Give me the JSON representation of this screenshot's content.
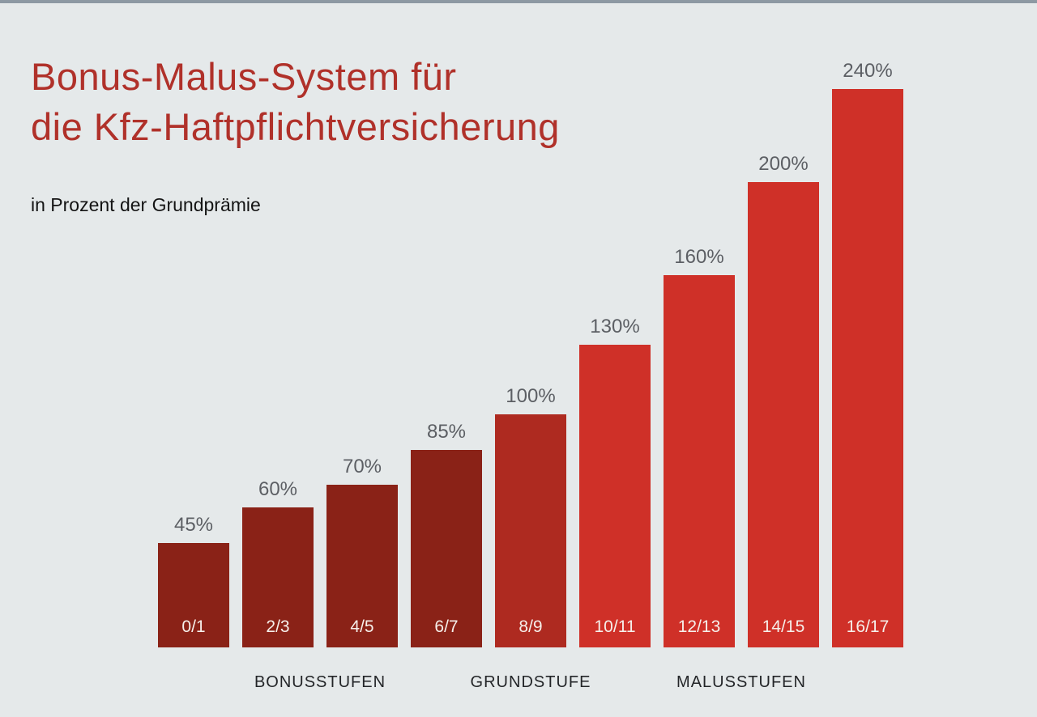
{
  "header": {
    "title_lines": [
      "Bonus-Malus-System für",
      "die Kfz-Haftpflichtversicherung"
    ],
    "subtitle": "in Prozent der Grundprämie"
  },
  "colors": {
    "background": "#E5E9EA",
    "top_strip": "#8D99A3",
    "title": "#B0312A",
    "value_label": "#5C5F64",
    "group_label": "#232528",
    "bar_text": "#F6EFEA"
  },
  "chart_data": {
    "type": "bar",
    "title": "Bonus-Malus-System für die Kfz-Haftpflichtversicherung",
    "subtitle": "in Prozent der Grundprämie",
    "categories": [
      "0/1",
      "2/3",
      "4/5",
      "6/7",
      "8/9",
      "10/11",
      "12/13",
      "14/15",
      "16/17"
    ],
    "values": [
      45,
      60,
      70,
      85,
      100,
      130,
      160,
      200,
      240
    ],
    "value_labels": [
      "45%",
      "60%",
      "70%",
      "85%",
      "100%",
      "130%",
      "160%",
      "200%",
      "240%"
    ],
    "bar_colors": [
      "#8A2217",
      "#8A2217",
      "#8A2217",
      "#8A2217",
      "#AE2A20",
      "#CF3028",
      "#CF3028",
      "#CF3028",
      "#CF3028"
    ],
    "groups": [
      {
        "label": "BONUSSTUFEN",
        "from": 0,
        "to": 3
      },
      {
        "label": "GRUNDSTUFE",
        "from": 4,
        "to": 4
      },
      {
        "label": "MALUSSTUFEN",
        "from": 5,
        "to": 8
      }
    ],
    "unit": "%",
    "ylim": [
      0,
      240
    ],
    "grid": false,
    "legend": false,
    "orientation": "vertical"
  }
}
